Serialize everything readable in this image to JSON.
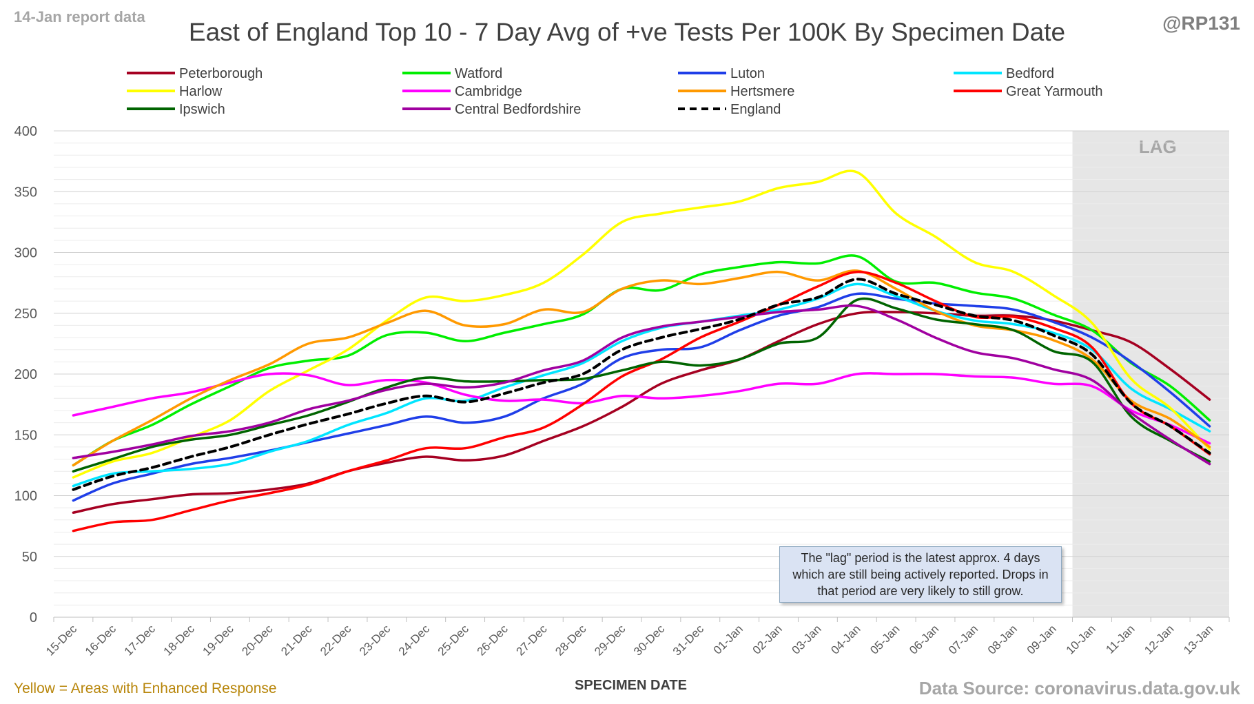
{
  "header": {
    "report_note": "14-Jan report data",
    "handle": "@RP131",
    "title": "East of England Top 10 - 7 Day Avg of +ve Tests Per 100K By Specimen Date"
  },
  "footer": {
    "enhanced_note": "Yellow = Areas with Enhanced Response",
    "source": "Data Source: coronavirus.data.gov.uk"
  },
  "annotation": "The \"lag\" period is the latest approx. 4 days which are still being actively reported.  Drops in that period are very likely to still grow.",
  "chart_data": {
    "type": "line",
    "xlabel": "SPECIMEN DATE",
    "ylabel": "",
    "ylim": [
      0,
      400
    ],
    "yticks": [
      0,
      50,
      100,
      150,
      200,
      250,
      300,
      350,
      400
    ],
    "grid": true,
    "legend_position": "top",
    "lag_label": "LAG",
    "lag_start_category": "10-Jan",
    "categories": [
      "15-Dec",
      "16-Dec",
      "17-Dec",
      "18-Dec",
      "19-Dec",
      "20-Dec",
      "21-Dec",
      "22-Dec",
      "23-Dec",
      "24-Dec",
      "25-Dec",
      "26-Dec",
      "27-Dec",
      "28-Dec",
      "29-Dec",
      "30-Dec",
      "31-Dec",
      "01-Jan",
      "02-Jan",
      "03-Jan",
      "04-Jan",
      "05-Jan",
      "06-Jan",
      "07-Jan",
      "08-Jan",
      "09-Jan",
      "10-Jan",
      "11-Jan",
      "12-Jan",
      "13-Jan"
    ],
    "series": [
      {
        "name": "Peterborough",
        "color": "#a50021",
        "dashed": false,
        "values": [
          86,
          93,
          97,
          101,
          102,
          105,
          110,
          120,
          127,
          132,
          129,
          133,
          145,
          157,
          173,
          192,
          203,
          212,
          227,
          241,
          250,
          251,
          250,
          248,
          248,
          244,
          236,
          226,
          204,
          179
        ]
      },
      {
        "name": "Watford",
        "color": "#00ee00",
        "dashed": false,
        "values": [
          125,
          145,
          158,
          175,
          190,
          205,
          211,
          215,
          232,
          234,
          227,
          234,
          241,
          249,
          270,
          269,
          282,
          288,
          292,
          291,
          297,
          276,
          275,
          267,
          262,
          249,
          236,
          209,
          190,
          162
        ]
      },
      {
        "name": "Luton",
        "color": "#1f3ee8",
        "dashed": false,
        "values": [
          96,
          110,
          118,
          126,
          131,
          137,
          144,
          151,
          158,
          165,
          160,
          165,
          180,
          192,
          213,
          220,
          222,
          236,
          248,
          255,
          266,
          262,
          258,
          256,
          253,
          243,
          230,
          210,
          185,
          157
        ]
      },
      {
        "name": "Bedford",
        "color": "#00e5ff",
        "dashed": false,
        "values": [
          108,
          118,
          120,
          122,
          126,
          136,
          145,
          158,
          168,
          180,
          178,
          189,
          199,
          209,
          227,
          238,
          243,
          248,
          253,
          262,
          274,
          264,
          252,
          244,
          241,
          234,
          220,
          188,
          171,
          153
        ]
      },
      {
        "name": "Harlow",
        "color": "#ffff00",
        "dashed": false,
        "values": [
          115,
          128,
          135,
          148,
          162,
          186,
          203,
          220,
          244,
          263,
          260,
          265,
          275,
          298,
          325,
          332,
          337,
          342,
          353,
          358,
          366,
          332,
          313,
          292,
          284,
          265,
          242,
          196,
          172,
          138
        ]
      },
      {
        "name": "Cambridge",
        "color": "#ff00ff",
        "dashed": false,
        "values": [
          166,
          173,
          180,
          185,
          193,
          200,
          199,
          191,
          195,
          193,
          183,
          178,
          179,
          176,
          182,
          180,
          182,
          186,
          192,
          192,
          200,
          200,
          200,
          198,
          197,
          192,
          190,
          170,
          158,
          143
        ]
      },
      {
        "name": "Hertsmere",
        "color": "#ff9900",
        "dashed": false,
        "values": [
          125,
          145,
          162,
          180,
          195,
          208,
          225,
          230,
          242,
          252,
          240,
          241,
          253,
          251,
          270,
          277,
          274,
          279,
          284,
          277,
          285,
          270,
          252,
          240,
          236,
          228,
          212,
          178,
          163,
          140
        ]
      },
      {
        "name": "Great Yarmouth",
        "color": "#ff0000",
        "dashed": false,
        "values": [
          71,
          78,
          80,
          88,
          96,
          102,
          109,
          120,
          129,
          139,
          139,
          148,
          156,
          175,
          198,
          212,
          230,
          243,
          257,
          272,
          284,
          275,
          260,
          247,
          247,
          238,
          222,
          176,
          157,
          134
        ]
      },
      {
        "name": "Ipswich",
        "color": "#006400",
        "dashed": false,
        "values": [
          120,
          130,
          140,
          146,
          150,
          158,
          166,
          177,
          189,
          197,
          194,
          194,
          195,
          196,
          203,
          210,
          207,
          212,
          225,
          230,
          261,
          254,
          245,
          241,
          236,
          219,
          210,
          165,
          145,
          128
        ]
      },
      {
        "name": "Central Bedfordshire",
        "color": "#a000a0",
        "dashed": false,
        "values": [
          131,
          136,
          142,
          149,
          153,
          160,
          171,
          178,
          187,
          192,
          189,
          193,
          203,
          211,
          230,
          239,
          243,
          247,
          251,
          253,
          256,
          245,
          230,
          218,
          213,
          204,
          195,
          168,
          146,
          126
        ]
      },
      {
        "name": "England",
        "color": "#000000",
        "dashed": true,
        "values": [
          105,
          116,
          123,
          132,
          140,
          150,
          159,
          167,
          176,
          182,
          177,
          184,
          193,
          200,
          220,
          230,
          237,
          245,
          257,
          263,
          278,
          266,
          257,
          248,
          244,
          232,
          216,
          176,
          157,
          135
        ]
      }
    ]
  }
}
